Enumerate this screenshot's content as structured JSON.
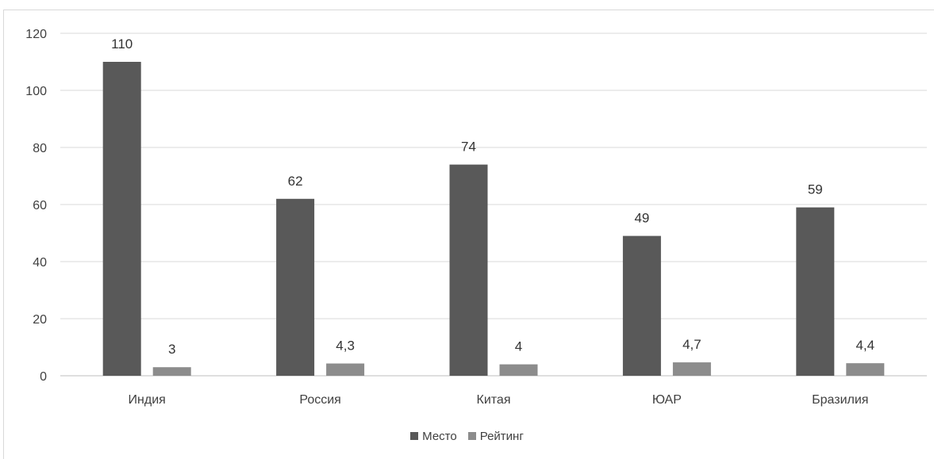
{
  "chart_data": {
    "type": "bar",
    "categories": [
      "Индия",
      "Россия",
      "Китая",
      "ЮАР",
      "Бразилия"
    ],
    "series": [
      {
        "name": "Место",
        "values": [
          110,
          62,
          74,
          49,
          59
        ],
        "labels": [
          "110",
          "62",
          "74",
          "49",
          "59"
        ],
        "color": "#595959"
      },
      {
        "name": "Рейтинг",
        "values": [
          3,
          4.3,
          4,
          4.7,
          4.4
        ],
        "labels": [
          "3",
          "4,3",
          "4",
          "4,7",
          "4,4"
        ],
        "color": "#8c8c8c"
      }
    ],
    "title": "",
    "xlabel": "",
    "ylabel": "",
    "ylim": [
      0,
      120
    ],
    "yticks": [
      0,
      20,
      40,
      60,
      80,
      100,
      120
    ],
    "grid": true,
    "legend_position": "bottom"
  }
}
